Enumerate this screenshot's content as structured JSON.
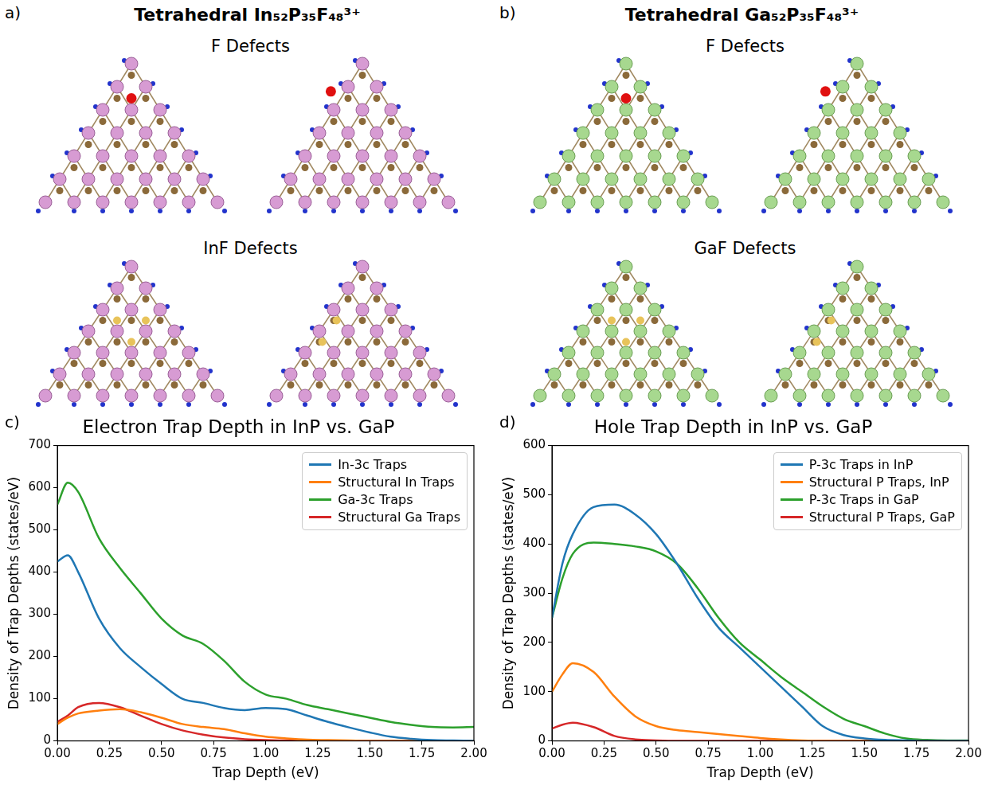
{
  "figure": {
    "panels": [
      {
        "letter": "a)",
        "title": "Tetrahedral In₅₂P₃₅F₄₈³⁺",
        "labels": [
          "F Defects",
          "InF Defects"
        ]
      },
      {
        "letter": "b)",
        "title": "Tetrahedral Ga₅₂P₃₅F₄₈³⁺",
        "labels": [
          "F Defects",
          "GaF Defects"
        ]
      }
    ]
  },
  "chart_data": [
    {
      "letter": "c)",
      "type": "line",
      "title": "Electron Trap Depth in InP vs. GaP",
      "x_label": "Trap Depth (eV)",
      "y_label": "Density of Trap Depths (states/eV)",
      "x": [
        0,
        0.05,
        0.1,
        0.2,
        0.3,
        0.4,
        0.5,
        0.6,
        0.7,
        0.8,
        0.9,
        1.0,
        1.1,
        1.2,
        1.3,
        1.4,
        1.5,
        1.6,
        1.7,
        1.8,
        1.9,
        2.0
      ],
      "series": [
        {
          "name": "In-3c Traps",
          "color": "#1f77b4",
          "values": [
            425,
            440,
            400,
            290,
            220,
            175,
            135,
            100,
            90,
            78,
            73,
            78,
            75,
            60,
            45,
            32,
            20,
            10,
            5,
            2,
            1,
            0
          ]
        },
        {
          "name": "Structural In Traps",
          "color": "#ff7f0e",
          "values": [
            40,
            55,
            65,
            72,
            75,
            68,
            55,
            40,
            33,
            28,
            18,
            10,
            6,
            3,
            2,
            1,
            0,
            0,
            0,
            0,
            0,
            0
          ]
        },
        {
          "name": "Ga-3c Traps",
          "color": "#2ca02c",
          "values": [
            560,
            612,
            590,
            480,
            410,
            350,
            290,
            250,
            230,
            190,
            140,
            110,
            100,
            85,
            75,
            65,
            55,
            45,
            38,
            33,
            32,
            33
          ]
        },
        {
          "name": "Structural Ga Traps",
          "color": "#d62728",
          "values": [
            45,
            60,
            80,
            90,
            80,
            60,
            40,
            25,
            15,
            8,
            4,
            2,
            1,
            0,
            0,
            0,
            0,
            0,
            0,
            0,
            0,
            0
          ]
        }
      ],
      "xlim": [
        0,
        2
      ],
      "xticks": [
        {
          "value": 0,
          "label": "0.00"
        },
        0.25,
        {
          "value": 0.5,
          "label": "0.50"
        },
        0.75,
        {
          "value": 1,
          "label": "1.00"
        },
        1.25,
        {
          "value": 1.5,
          "label": "1.50"
        },
        1.75,
        {
          "value": 2,
          "label": "2.00"
        }
      ],
      "ylim": [
        0,
        700
      ],
      "yticks": [
        0,
        100,
        200,
        300,
        400,
        500,
        600,
        700
      ],
      "grid": false,
      "legend": "upper right"
    },
    {
      "letter": "d)",
      "type": "line",
      "title": "Hole Trap Depth in InP vs. GaP",
      "x_label": "Trap Depth (eV)",
      "y_label": "Density of Trap Depths (states/eV)",
      "x": [
        0,
        0.05,
        0.1,
        0.2,
        0.3,
        0.4,
        0.5,
        0.6,
        0.7,
        0.8,
        0.9,
        1.0,
        1.1,
        1.2,
        1.3,
        1.4,
        1.5,
        1.6,
        1.7,
        1.8,
        1.9,
        2.0
      ],
      "series": [
        {
          "name": "P-3c Traps in InP",
          "color": "#1f77b4",
          "values": [
            250,
            360,
            420,
            475,
            480,
            460,
            420,
            360,
            290,
            230,
            190,
            150,
            110,
            70,
            30,
            12,
            5,
            2,
            1,
            0,
            0,
            0
          ]
        },
        {
          "name": "Structural P Traps, InP",
          "color": "#ff7f0e",
          "values": [
            100,
            135,
            158,
            140,
            90,
            50,
            30,
            22,
            18,
            14,
            10,
            6,
            3,
            1,
            0,
            0,
            0,
            0,
            0,
            0,
            0,
            0
          ]
        },
        {
          "name": "P-3c Traps in GaP",
          "color": "#2ca02c",
          "values": [
            250,
            330,
            380,
            403,
            400,
            395,
            385,
            360,
            310,
            250,
            200,
            165,
            130,
            100,
            70,
            45,
            30,
            15,
            5,
            2,
            1,
            1
          ]
        },
        {
          "name": "Structural P Traps, GaP",
          "color": "#d62728",
          "values": [
            25,
            33,
            37,
            28,
            10,
            3,
            1,
            0,
            0,
            0,
            0,
            0,
            0,
            0,
            0,
            0,
            0,
            0,
            0,
            0,
            0,
            0
          ]
        }
      ],
      "xlim": [
        0,
        2
      ],
      "xticks": [
        {
          "value": 0,
          "label": "0.00"
        },
        0.25,
        {
          "value": 0.5,
          "label": "0.50"
        },
        0.75,
        {
          "value": 1,
          "label": "1.00"
        },
        1.25,
        {
          "value": 1.5,
          "label": "1.50"
        },
        1.75,
        {
          "value": 2,
          "label": "2.00"
        }
      ],
      "ylim": [
        0,
        600
      ],
      "yticks": [
        0,
        100,
        200,
        300,
        400,
        500,
        600
      ],
      "grid": false,
      "legend": "upper right"
    }
  ]
}
